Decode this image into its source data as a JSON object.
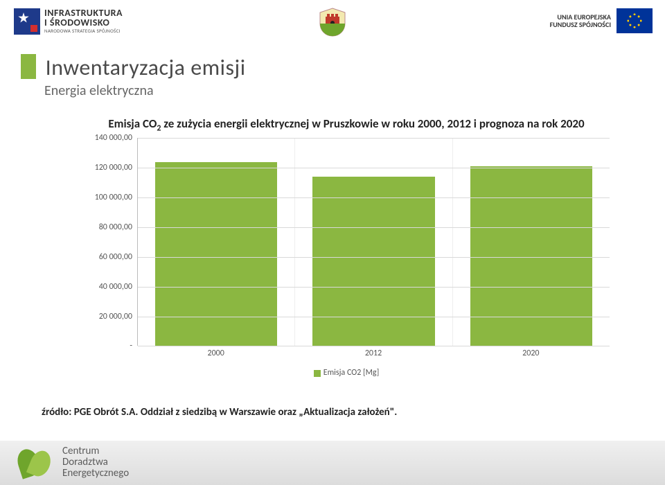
{
  "header": {
    "left_logo": {
      "line1": "INFRASTRUKTURA",
      "line2": "I ŚRODOWISKO",
      "line3": "NARODOWA STRATEGIA SPÓJNOŚCI"
    },
    "right_logo": {
      "line1": "UNIA EUROPEJSKA",
      "line2": "FUNDUSZ SPÓJNOŚCI"
    }
  },
  "title": {
    "main": "Inwentaryzacja emisji",
    "sub": "Energia elektryczna"
  },
  "chart": {
    "type": "bar",
    "title_pre": "Emisja CO",
    "title_sub": "2",
    "title_post": " ze zużycia energii elektrycznej w Pruszkowie w roku 2000, 2012 i prognoza na rok 2020",
    "categories": [
      "2000",
      "2012",
      "2020"
    ],
    "values": [
      124000,
      114000,
      121000
    ],
    "bar_color": "#8bb741",
    "y_ticks": [
      "-",
      "20 000,00",
      "40 000,00",
      "60 000,00",
      "80 000,00",
      "100 000,00",
      "120 000,00",
      "140 000,00"
    ],
    "y_max": 140000,
    "grid_color": "#d9d9d9",
    "axis_color": "#bbbbbb",
    "tick_font_size": 12,
    "title_font_size": 17,
    "legend_label": "Emisja CO2 [Mg]"
  },
  "source": "źródło: PGE Obrót S.A. Oddział z siedzibą w Warszawie oraz „Aktualizacja założeń\".",
  "footer": {
    "line1": "Centrum",
    "line2": "Doradztwa",
    "line3": "Energetycznego"
  }
}
